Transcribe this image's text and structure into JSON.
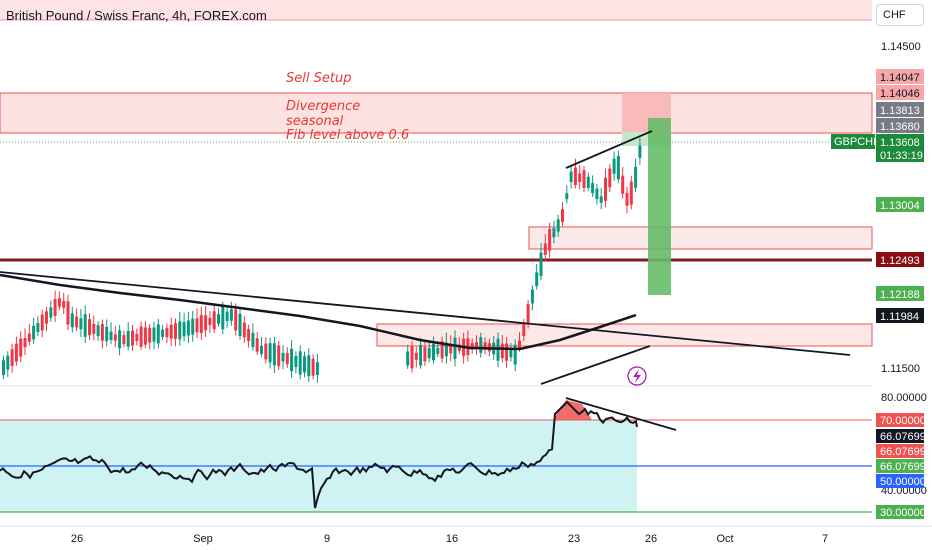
{
  "header": {
    "symbol_title": "British Pound / Swiss Franc, 4h, FOREX.com",
    "currency_button": "CHF"
  },
  "annotations": {
    "sell_setup": "Sell Setup",
    "notes": [
      "Divergence",
      "seasonal",
      "Fib level above 0.6"
    ]
  },
  "price_axis": {
    "ticks": [
      "1.14500",
      "1.11500"
    ],
    "labels": [
      {
        "text": "1.14047",
        "bg": "#f7a6aa",
        "fg": "#131722"
      },
      {
        "text": "1.14046",
        "bg": "#f7a6aa",
        "fg": "#131722"
      },
      {
        "text": "1.13813",
        "bg": "#787b86",
        "fg": "#ffffff"
      },
      {
        "text": "1.13680",
        "bg": "#787b86",
        "fg": "#ffffff"
      },
      {
        "text": "1.13004",
        "bg": "#4caf50",
        "fg": "#ffffff"
      },
      {
        "text": "1.12493",
        "bg": "#880e14",
        "fg": "#ffffff"
      },
      {
        "text": "1.12188",
        "bg": "#4caf50",
        "fg": "#ffffff"
      },
      {
        "text": "1.11984",
        "bg": "#131722",
        "fg": "#ffffff"
      }
    ],
    "last_price": {
      "symbol": "GBPCHF",
      "price": "1.13608",
      "countdown": "01:33:19",
      "bg": "#1b8a3a"
    }
  },
  "rsi_axis": {
    "ticks": [
      "80.00000",
      "40.00000"
    ],
    "labels": [
      {
        "text": "70.00000",
        "bg": "#ef5350",
        "fg": "#ffffff"
      },
      {
        "text": "66.07699",
        "bg": "#131722",
        "fg": "#ffffff"
      },
      {
        "text": "66.07699",
        "bg": "#ef5350",
        "fg": "#ffffff"
      },
      {
        "text": "66.07699",
        "bg": "#4caf50",
        "fg": "#ffffff"
      },
      {
        "text": "50.00000",
        "bg": "#2962ff",
        "fg": "#ffffff"
      },
      {
        "text": "30.00000",
        "bg": "#4caf50",
        "fg": "#ffffff"
      }
    ]
  },
  "time_axis": [
    "26",
    "Sep",
    "9",
    "16",
    "23",
    "26",
    "Oct",
    "7"
  ],
  "colors": {
    "bull": "#089981",
    "bear": "#f23645",
    "rsi_band": "#cff3f3",
    "zone": "#fde2e2",
    "support": "#7b1f24",
    "accent": "#9c27b0"
  },
  "icons": {
    "flash": "lightning-icon"
  }
}
